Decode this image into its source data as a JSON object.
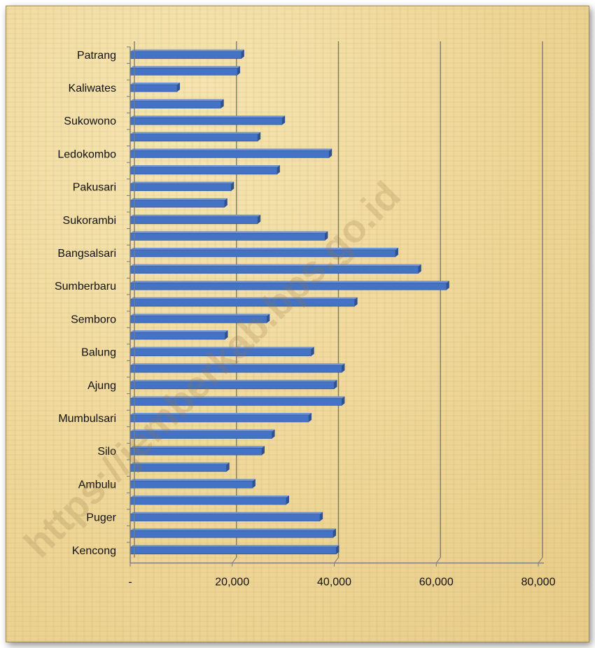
{
  "watermark": "https://jemberkab.bps.go.id",
  "colors": {
    "bar": "#4472c4",
    "bar_edge": "#2f528f",
    "grid": "#7a7a7a"
  },
  "chart_data": {
    "type": "bar",
    "orientation": "horizontal",
    "title": "",
    "xlabel": "",
    "ylabel": "",
    "xlim": [
      0,
      80000
    ],
    "x_ticks": [
      0,
      20000,
      40000,
      60000,
      80000
    ],
    "x_tick_labels": [
      "-",
      "20,000",
      "40,000",
      "60,000",
      "80,000"
    ],
    "grid": "vertical major gridlines",
    "legend": "none",
    "categories": [
      "Patrang",
      "",
      "Kaliwates",
      "",
      "Sukowono",
      "",
      "Ledokombo",
      "",
      "Pakusari",
      "",
      "Sukorambi",
      "",
      "Bangsalsari",
      "",
      "Sumberbaru",
      "",
      "Semboro",
      "",
      "Balung",
      "",
      "Ajung",
      "",
      "Mumbulsari",
      "",
      "Silo",
      "",
      "Ambulu",
      "",
      "Puger",
      "",
      "Kencong"
    ],
    "values": [
      21800,
      21000,
      9200,
      17800,
      29800,
      25000,
      39000,
      28800,
      19800,
      18500,
      25000,
      38200,
      52000,
      56500,
      62000,
      44000,
      26800,
      18600,
      35500,
      41500,
      40000,
      41500,
      35000,
      27800,
      25800,
      18900,
      24000,
      30600,
      37200,
      39800,
      40400
    ]
  }
}
